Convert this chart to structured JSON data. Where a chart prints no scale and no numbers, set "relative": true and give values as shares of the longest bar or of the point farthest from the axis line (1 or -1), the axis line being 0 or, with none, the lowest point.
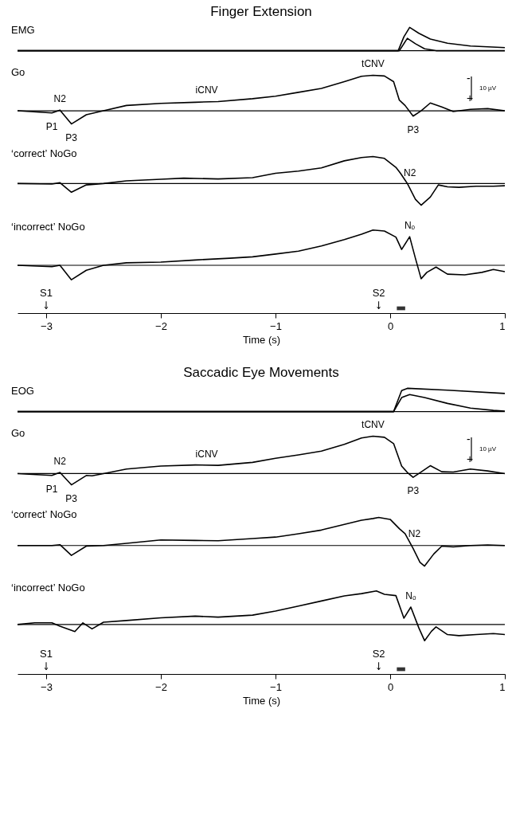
{
  "chart_data": [
    {
      "type": "line",
      "title": "Finger Extension",
      "ylabel": "EMG",
      "relative": true,
      "xlim": [
        -3.25,
        1
      ],
      "xticks": [
        -3,
        -2,
        -1,
        0,
        1
      ],
      "tick_labels": false,
      "series": [
        {
          "color": "#000000",
          "x": [
            -3.25,
            0.07,
            0.12,
            0.17,
            0.25,
            0.35,
            0.5,
            0.7,
            1.0
          ],
          "values": [
            0,
            0,
            0.6,
            1,
            0.75,
            0.5,
            0.32,
            0.2,
            0.13
          ]
        },
        {
          "color": "#000000",
          "x": [
            -3.25,
            0.08,
            0.15,
            0.22,
            0.3,
            0.4,
            1.0
          ],
          "values": [
            0,
            0,
            0.53,
            0.3,
            0.08,
            0,
            0
          ]
        }
      ]
    },
    {
      "type": "line",
      "ylabel": "Go",
      "relative": true,
      "xlim": [
        -3.25,
        1
      ],
      "xticks": [
        -3,
        -2,
        -1,
        0,
        1
      ],
      "tick_labels": false,
      "series": [
        {
          "color": "#000000",
          "x": [
            -3.25,
            -2.95,
            -2.88,
            -2.78,
            -2.65,
            -2.5,
            -2.3,
            -2.0,
            -1.7,
            -1.5,
            -1.2,
            -1.0,
            -0.8,
            -0.6,
            -0.4,
            -0.25,
            -0.15,
            -0.05,
            0.03,
            0.08,
            0.13,
            0.2,
            0.27,
            0.35,
            0.45,
            0.55,
            0.7,
            0.85,
            1.0
          ],
          "values": [
            0,
            -0.06,
            0.02,
            -0.37,
            -0.11,
            0,
            0.15,
            0.21,
            0.24,
            0.26,
            0.34,
            0.41,
            0.52,
            0.63,
            0.82,
            0.97,
            1,
            0.98,
            0.82,
            0.3,
            0.15,
            -0.15,
            0,
            0.22,
            0.11,
            -0.02,
            0.04,
            0.06,
            0
          ]
        }
      ],
      "annotations": [
        {
          "text": "P1",
          "x": -2.95,
          "y": -0.06
        },
        {
          "text": "N2",
          "x": -2.88,
          "y": 0.02
        },
        {
          "text": "P3",
          "x": -2.78,
          "y": -0.37
        },
        {
          "text": "iCNV",
          "x": -1.6,
          "y": 0.26
        },
        {
          "text": "tCNV",
          "x": -0.15,
          "y": 1
        },
        {
          "text": "P3",
          "x": 0.2,
          "y": -0.15
        },
        "-",
        "+",
        "10 µV"
      ]
    },
    {
      "type": "line",
      "ylabel": "‘correct’ NoGo",
      "relative": true,
      "xlim": [
        -3.25,
        1
      ],
      "xticks": [
        -3,
        -2,
        -1,
        0,
        1
      ],
      "tick_labels": false,
      "series": [
        {
          "color": "#000000",
          "x": [
            -3.25,
            -2.95,
            -2.88,
            -2.78,
            -2.65,
            -2.5,
            -2.3,
            -2.0,
            -1.8,
            -1.5,
            -1.2,
            -1.0,
            -0.8,
            -0.6,
            -0.4,
            -0.25,
            -0.15,
            -0.05,
            0.05,
            0.09,
            0.15,
            0.22,
            0.27,
            0.35,
            0.42,
            0.5,
            0.6,
            0.75,
            0.9,
            1.0
          ],
          "values": [
            0,
            -0.02,
            0.03,
            -0.32,
            -0.05,
            0,
            0.1,
            0.16,
            0.2,
            0.17,
            0.22,
            0.38,
            0.46,
            0.58,
            0.84,
            0.96,
            1,
            0.93,
            0.6,
            0.38,
            0,
            -0.58,
            -0.8,
            -0.5,
            -0.05,
            -0.12,
            -0.14,
            -0.1,
            -0.1,
            -0.08
          ]
        }
      ],
      "annotations": [
        {
          "text": "N2",
          "x": 0.09,
          "y": 0.38
        }
      ]
    },
    {
      "type": "line",
      "ylabel": "‘incorrect’ NoGo",
      "xlabel": "Time (s)",
      "relative": true,
      "xlim": [
        -3.25,
        1
      ],
      "xticks": [
        -3,
        -2,
        -1,
        0,
        1
      ],
      "tick_labels": "x",
      "series": [
        {
          "color": "#000000",
          "x": [
            -3.25,
            -2.95,
            -2.88,
            -2.78,
            -2.65,
            -2.5,
            -2.3,
            -2.0,
            -1.7,
            -1.4,
            -1.2,
            -1.0,
            -0.8,
            -0.6,
            -0.4,
            -0.25,
            -0.15,
            -0.05,
            0.05,
            0.1,
            0.17,
            0.22,
            0.27,
            0.32,
            0.4,
            0.5,
            0.65,
            0.8,
            0.9,
            1.0
          ],
          "values": [
            0,
            -0.04,
            0,
            -0.41,
            -0.14,
            0,
            0.07,
            0.09,
            0.15,
            0.2,
            0.24,
            0.32,
            0.4,
            0.55,
            0.73,
            0.88,
            1,
            0.97,
            0.8,
            0.45,
            0.81,
            0.2,
            -0.38,
            -0.2,
            -0.05,
            -0.25,
            -0.27,
            -0.2,
            -0.12,
            -0.18
          ]
        }
      ],
      "annotations": [
        {
          "text": "Nₒ",
          "x": 0.17,
          "y": 0.81
        }
      ],
      "ref_lines": [
        {
          "axis": "x",
          "value": -3,
          "label": "S1"
        },
        {
          "axis": "x",
          "value": -0.1,
          "label": "S2"
        }
      ]
    },
    {
      "type": "line",
      "title": "Saccadic Eye Movements",
      "ylabel": "EOG",
      "relative": true,
      "xlim": [
        -3.25,
        1
      ],
      "xticks": [
        -3,
        -2,
        -1,
        0,
        1
      ],
      "tick_labels": false,
      "series": [
        {
          "color": "#000000",
          "x": [
            -3.25,
            0.03,
            0.1,
            0.15,
            0.5,
            1.0
          ],
          "values": [
            0,
            0,
            0.9,
            1,
            0.92,
            0.78
          ]
        },
        {
          "color": "#000000",
          "x": [
            -3.25,
            0.03,
            0.1,
            0.17,
            0.3,
            0.5,
            0.7,
            0.9,
            1.0
          ],
          "values": [
            0,
            0,
            0.6,
            0.73,
            0.6,
            0.35,
            0.15,
            0.05,
            0.02
          ]
        }
      ]
    },
    {
      "type": "line",
      "ylabel": "Go",
      "relative": true,
      "xlim": [
        -3.25,
        1
      ],
      "xticks": [
        -3,
        -2,
        -1,
        0,
        1
      ],
      "tick_labels": false,
      "series": [
        {
          "color": "#000000",
          "x": [
            -3.25,
            -2.95,
            -2.88,
            -2.78,
            -2.65,
            -2.6,
            -2.5,
            -2.3,
            -2.0,
            -1.7,
            -1.5,
            -1.2,
            -1.0,
            -0.8,
            -0.6,
            -0.4,
            -0.25,
            -0.15,
            -0.05,
            0.03,
            0.1,
            0.15,
            0.2,
            0.25,
            0.35,
            0.45,
            0.55,
            0.7,
            0.85,
            1.0
          ],
          "values": [
            0,
            -0.05,
            0.03,
            -0.3,
            -0.05,
            -0.06,
            0,
            0.12,
            0.2,
            0.23,
            0.22,
            0.3,
            0.41,
            0.5,
            0.6,
            0.78,
            0.95,
            1,
            0.97,
            0.8,
            0.2,
            0.03,
            -0.1,
            0,
            0.21,
            0.05,
            0.04,
            0.12,
            0.07,
            0
          ]
        }
      ],
      "annotations": [
        {
          "text": "P1",
          "x": -2.95,
          "y": -0.05
        },
        {
          "text": "N2",
          "x": -2.88,
          "y": 0.03
        },
        {
          "text": "P3",
          "x": -2.78,
          "y": -0.3
        },
        {
          "text": "iCNV",
          "x": -1.6,
          "y": 0.22
        },
        {
          "text": "tCNV",
          "x": -0.15,
          "y": 1
        },
        {
          "text": "P3",
          "x": 0.2,
          "y": -0.1
        },
        "-",
        "+",
        "10 µV"
      ]
    },
    {
      "type": "line",
      "ylabel": "‘correct’ NoGo",
      "relative": true,
      "xlim": [
        -3.25,
        1
      ],
      "xticks": [
        -3,
        -2,
        -1,
        0,
        1
      ],
      "tick_labels": false,
      "series": [
        {
          "color": "#000000",
          "x": [
            -3.25,
            -2.95,
            -2.88,
            -2.78,
            -2.65,
            -2.5,
            -2.3,
            -2.0,
            -1.7,
            -1.5,
            -1.2,
            -1.0,
            -0.8,
            -0.6,
            -0.4,
            -0.25,
            -0.15,
            -0.1,
            0.0,
            0.08,
            0.13,
            0.2,
            0.26,
            0.3,
            0.38,
            0.45,
            0.55,
            0.7,
            0.85,
            1.0
          ],
          "values": [
            0,
            0,
            0.03,
            -0.35,
            -0.02,
            0,
            0.08,
            0.2,
            0.18,
            0.17,
            0.25,
            0.3,
            0.42,
            0.55,
            0.75,
            0.9,
            0.96,
            1,
            0.93,
            0.6,
            0.42,
            -0.1,
            -0.6,
            -0.73,
            -0.3,
            -0.02,
            -0.05,
            0,
            0.02,
            0
          ]
        }
      ],
      "annotations": [
        {
          "text": "N2",
          "x": 0.13,
          "y": 0.42
        }
      ]
    },
    {
      "type": "line",
      "ylabel": "‘incorrect’ NoGo",
      "xlabel": "Time (s)",
      "relative": true,
      "xlim": [
        -3.25,
        1
      ],
      "xticks": [
        -3,
        -2,
        -1,
        0,
        1
      ],
      "tick_labels": "x",
      "series": [
        {
          "color": "#000000",
          "x": [
            -3.25,
            -3.1,
            -2.95,
            -2.88,
            -2.75,
            -2.68,
            -2.6,
            -2.5,
            -2.3,
            -2.0,
            -1.7,
            -1.5,
            -1.2,
            -1.0,
            -0.8,
            -0.6,
            -0.4,
            -0.25,
            -0.12,
            -0.05,
            0.05,
            0.12,
            0.18,
            0.25,
            0.3,
            0.36,
            0.4,
            0.5,
            0.6,
            0.75,
            0.9,
            1.0
          ],
          "values": [
            0,
            0.05,
            0.05,
            -0.05,
            -0.21,
            0.05,
            -0.13,
            0.07,
            0.12,
            0.2,
            0.25,
            0.22,
            0.28,
            0.4,
            0.55,
            0.7,
            0.85,
            0.92,
            1,
            0.9,
            0.86,
            0.19,
            0.52,
            -0.1,
            -0.48,
            -0.2,
            -0.07,
            -0.3,
            -0.33,
            -0.3,
            -0.27,
            -0.3
          ]
        }
      ],
      "annotations": [
        {
          "text": "Nₒ",
          "x": 0.18,
          "y": 0.52
        }
      ],
      "ref_lines": [
        {
          "axis": "x",
          "value": -3,
          "label": "S1"
        },
        {
          "axis": "x",
          "value": -0.1,
          "label": "S2"
        }
      ]
    }
  ]
}
